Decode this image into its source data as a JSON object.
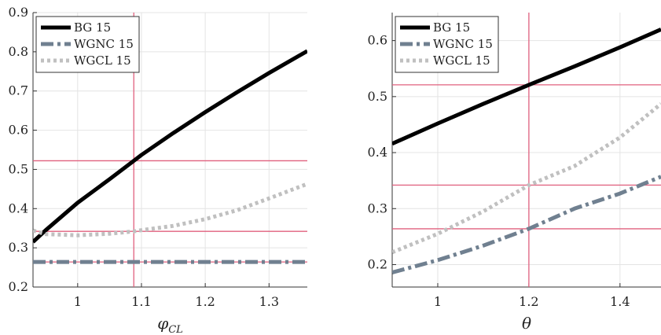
{
  "chart_data": [
    {
      "type": "line",
      "title": "",
      "xlabel": "φ",
      "xlabel_sub": "CL",
      "ylabel": "",
      "xlim": [
        0.93,
        1.36
      ],
      "ylim": [
        0.2,
        0.9
      ],
      "xticks": [
        1,
        1.1,
        1.2,
        1.3
      ],
      "xtick_labels": [
        "1",
        "1.1",
        "1.2",
        "1.3"
      ],
      "yticks": [
        0.2,
        0.3,
        0.4,
        0.5,
        0.6,
        0.7,
        0.8,
        0.9
      ],
      "ytick_labels": [
        "0.2",
        "0.3",
        "0.4",
        "0.5",
        "0.6",
        "0.7",
        "0.8",
        "0.9"
      ],
      "grid": true,
      "legend_position": "top-left",
      "series": [
        {
          "name": "BG 15",
          "color": "#000000",
          "style": "solid",
          "x": [
            0.93,
            0.95,
            1.0,
            1.05,
            1.088,
            1.1,
            1.15,
            1.2,
            1.25,
            1.3,
            1.36
          ],
          "y": [
            0.315,
            0.345,
            0.415,
            0.475,
            0.522,
            0.537,
            0.593,
            0.646,
            0.697,
            0.746,
            0.802
          ]
        },
        {
          "name": "WGNC 15",
          "color": "#708090",
          "style": "dashdot",
          "x": [
            0.93,
            1.0,
            1.1,
            1.2,
            1.3,
            1.36
          ],
          "y": [
            0.264,
            0.264,
            0.264,
            0.264,
            0.264,
            0.264
          ]
        },
        {
          "name": "WGCL 15",
          "color": "#c0c0c0",
          "style": "dotted",
          "x": [
            0.93,
            0.95,
            1.0,
            1.05,
            1.088,
            1.1,
            1.15,
            1.2,
            1.25,
            1.3,
            1.36
          ],
          "y": [
            0.344,
            0.335,
            0.332,
            0.336,
            0.342,
            0.345,
            0.356,
            0.373,
            0.396,
            0.426,
            0.463
          ]
        }
      ],
      "reference_lines": {
        "color": "#e0607e",
        "vertical_x": [
          1.088
        ],
        "horizontal_y": [
          0.522,
          0.342,
          0.264
        ]
      }
    },
    {
      "type": "line",
      "title": "",
      "xlabel": "θ",
      "ylabel": "",
      "xlim": [
        0.9,
        1.49
      ],
      "ylim": [
        0.16,
        0.65
      ],
      "xticks": [
        1,
        1.2,
        1.4
      ],
      "xtick_labels": [
        "1",
        "1.2",
        "1.4"
      ],
      "yticks": [
        0.2,
        0.3,
        0.4,
        0.5,
        0.6
      ],
      "ytick_labels": [
        "0.2",
        "0.3",
        "0.4",
        "0.5",
        "0.6"
      ],
      "grid": true,
      "legend_position": "top-left",
      "series": [
        {
          "name": "BG 15",
          "color": "#000000",
          "style": "solid",
          "x": [
            0.9,
            1.0,
            1.1,
            1.2,
            1.3,
            1.4,
            1.49
          ],
          "y": [
            0.416,
            0.452,
            0.487,
            0.521,
            0.554,
            0.588,
            0.62
          ]
        },
        {
          "name": "WGNC 15",
          "color": "#708090",
          "style": "dashdot",
          "x": [
            0.9,
            1.0,
            1.1,
            1.2,
            1.3,
            1.4,
            1.49
          ],
          "y": [
            0.186,
            0.208,
            0.234,
            0.264,
            0.3,
            0.327,
            0.357
          ]
        },
        {
          "name": "WGCL 15",
          "color": "#c0c0c0",
          "style": "dotted",
          "x": [
            0.9,
            1.0,
            1.1,
            1.2,
            1.3,
            1.4,
            1.49
          ],
          "y": [
            0.222,
            0.255,
            0.295,
            0.342,
            0.376,
            0.427,
            0.487
          ]
        }
      ],
      "reference_lines": {
        "color": "#e0607e",
        "vertical_x": [
          1.2
        ],
        "horizontal_y": [
          0.521,
          0.342,
          0.264
        ]
      }
    }
  ]
}
